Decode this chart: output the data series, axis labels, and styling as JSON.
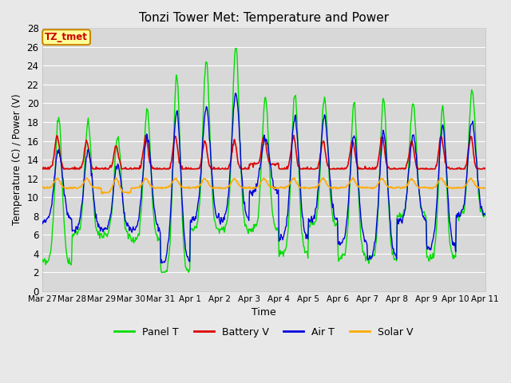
{
  "title": "Tonzi Tower Met: Temperature and Power",
  "xlabel": "Time",
  "ylabel": "Temperature (C) / Power (V)",
  "ylim": [
    0,
    28
  ],
  "yticks": [
    0,
    2,
    4,
    6,
    8,
    10,
    12,
    14,
    16,
    18,
    20,
    22,
    24,
    26,
    28
  ],
  "xtick_labels": [
    "Mar 27",
    "Mar 28",
    "Mar 29",
    "Mar 30",
    "Mar 31",
    "Apr 1",
    "Apr 2",
    "Apr 3",
    "Apr 4",
    "Apr 5",
    "Apr 6",
    "Apr 7",
    "Apr 8",
    "Apr 9",
    "Apr 10",
    "Apr 11"
  ],
  "bg_color": "#e8e8e8",
  "plot_bg_color": "#d8d8d8",
  "grid_color": "#ffffff",
  "colors": {
    "panel_t": "#00dd00",
    "battery_v": "#dd0000",
    "air_t": "#0000dd",
    "solar_v": "#ffaa00"
  },
  "annotation_text": "TZ_tmet",
  "annotation_bg": "#ffff99",
  "annotation_border": "#cc8800",
  "annotation_text_color": "#cc0000",
  "legend_labels": [
    "Panel T",
    "Battery V",
    "Air T",
    "Solar V"
  ],
  "days": 15,
  "pts_per_day": 48
}
